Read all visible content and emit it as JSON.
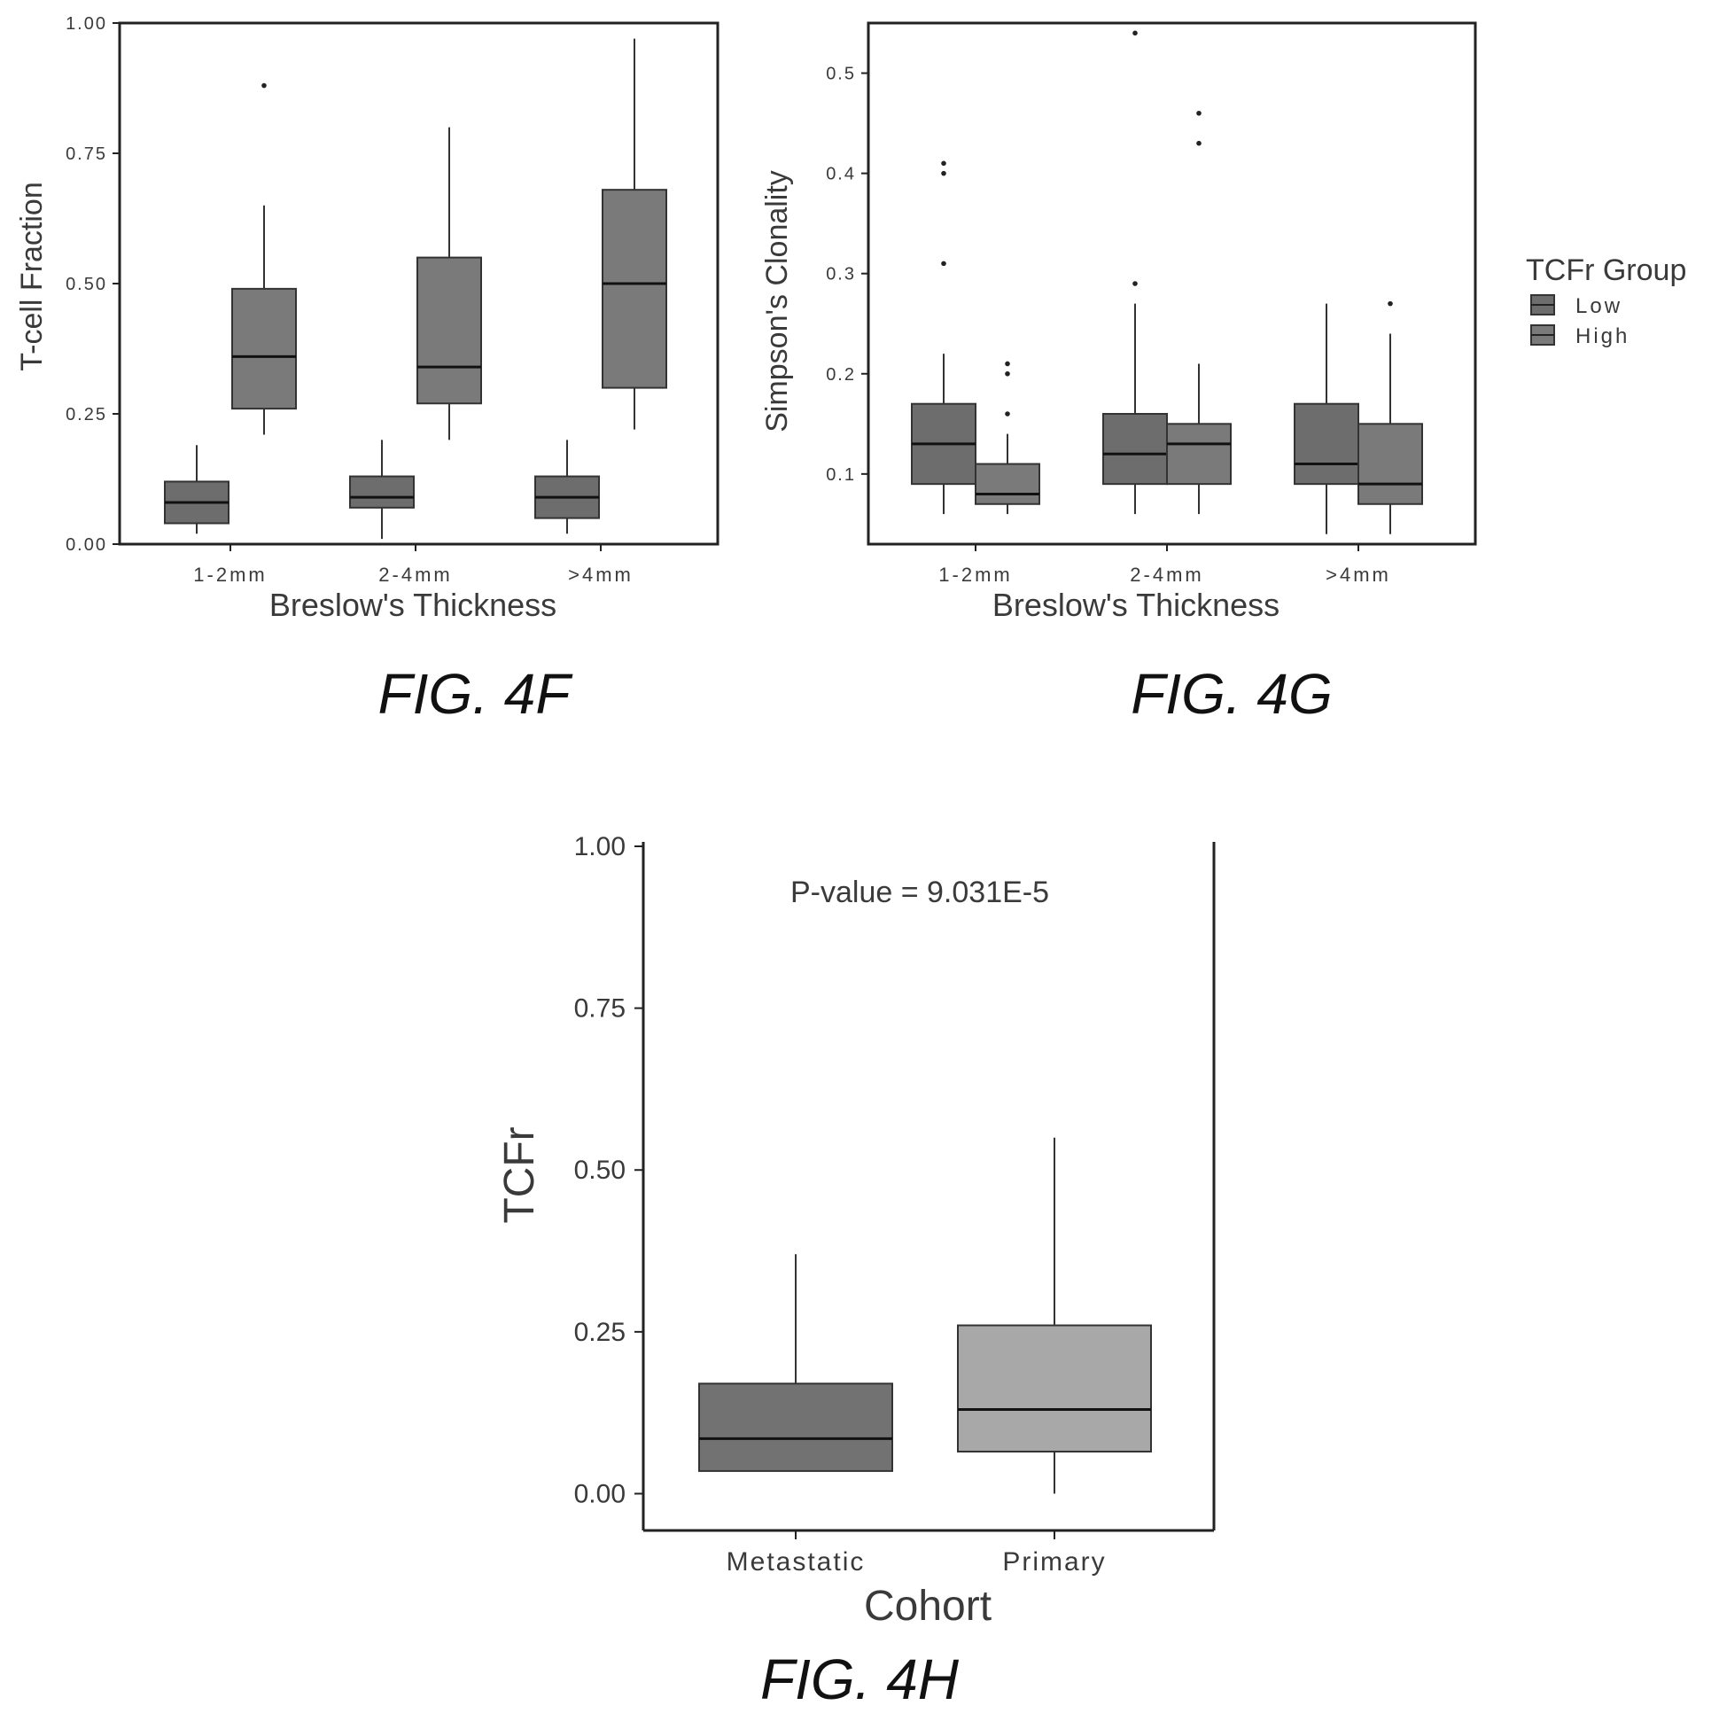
{
  "figures": {
    "f4F": "FIG. 4F",
    "f4G": "FIG. 4G",
    "f4H": "FIG. 4H"
  },
  "colors": {
    "low": "#6d6d6d",
    "high": "#7a7a7a",
    "metastatic": "#727272",
    "primary": "#a8a8a8",
    "box_stroke": "#333333"
  },
  "chart_data": [
    {
      "id": "4F",
      "type": "box",
      "xlabel": "Breslow's Thickness",
      "ylabel": "T-cell Fraction",
      "categories": [
        "1-2mm",
        "2-4mm",
        ">4mm"
      ],
      "ylim": [
        0,
        1
      ],
      "yticks": [
        "0.00",
        "0.25",
        "0.50",
        "0.75",
        "1.00"
      ],
      "grid": false,
      "series": [
        {
          "group": "Low",
          "boxes": [
            {
              "min": 0.02,
              "q1": 0.04,
              "median": 0.08,
              "q3": 0.12,
              "max": 0.19,
              "outliers": []
            },
            {
              "min": 0.01,
              "q1": 0.07,
              "median": 0.09,
              "q3": 0.13,
              "max": 0.2,
              "outliers": []
            },
            {
              "min": 0.02,
              "q1": 0.05,
              "median": 0.09,
              "q3": 0.13,
              "max": 0.2,
              "outliers": []
            }
          ]
        },
        {
          "group": "High",
          "boxes": [
            {
              "min": 0.21,
              "q1": 0.26,
              "median": 0.36,
              "q3": 0.49,
              "max": 0.65,
              "outliers": [
                0.88
              ]
            },
            {
              "min": 0.2,
              "q1": 0.27,
              "median": 0.34,
              "q3": 0.55,
              "max": 0.8,
              "outliers": []
            },
            {
              "min": 0.22,
              "q1": 0.3,
              "median": 0.5,
              "q3": 0.68,
              "max": 0.97,
              "outliers": []
            }
          ]
        }
      ]
    },
    {
      "id": "4G",
      "type": "box",
      "xlabel": "Breslow's Thickness",
      "ylabel": "Simpson's Clonality",
      "categories": [
        "1-2mm",
        "2-4mm",
        ">4mm"
      ],
      "ylim": [
        0.03,
        0.55
      ],
      "yticks": [
        "0.1",
        "0.2",
        "0.3",
        "0.4",
        "0.5"
      ],
      "grid": false,
      "legend": {
        "title": "TCFr Group",
        "items": [
          "Low",
          "High"
        ],
        "placement": "right"
      },
      "series": [
        {
          "group": "Low",
          "boxes": [
            {
              "min": 0.06,
              "q1": 0.09,
              "median": 0.13,
              "q3": 0.17,
              "max": 0.22,
              "outliers": [
                0.31,
                0.4,
                0.41
              ]
            },
            {
              "min": 0.06,
              "q1": 0.09,
              "median": 0.12,
              "q3": 0.16,
              "max": 0.27,
              "outliers": [
                0.29,
                0.54
              ]
            },
            {
              "min": 0.04,
              "q1": 0.09,
              "median": 0.11,
              "q3": 0.17,
              "max": 0.27,
              "outliers": []
            }
          ]
        },
        {
          "group": "High",
          "boxes": [
            {
              "min": 0.06,
              "q1": 0.07,
              "median": 0.08,
              "q3": 0.11,
              "max": 0.14,
              "outliers": [
                0.16,
                0.2,
                0.21
              ]
            },
            {
              "min": 0.06,
              "q1": 0.09,
              "median": 0.13,
              "q3": 0.15,
              "max": 0.21,
              "outliers": [
                0.43,
                0.46
              ]
            },
            {
              "min": 0.04,
              "q1": 0.07,
              "median": 0.09,
              "q3": 0.15,
              "max": 0.24,
              "outliers": [
                0.27
              ]
            }
          ]
        }
      ]
    },
    {
      "id": "4H",
      "type": "box",
      "xlabel": "Cohort",
      "ylabel": "TCFr",
      "categories": [
        "Metastatic",
        "Primary"
      ],
      "ylim": [
        -0.05,
        1.0
      ],
      "yticks": [
        "0.00",
        "0.25",
        "0.50",
        "0.75",
        "1.00"
      ],
      "grid": false,
      "annotation": "P-value = 9.031E-5",
      "boxes": [
        {
          "min": 0.035,
          "q1": 0.035,
          "median": 0.085,
          "q3": 0.17,
          "max": 0.37
        },
        {
          "min": 0.0,
          "q1": 0.065,
          "median": 0.13,
          "q3": 0.26,
          "max": 0.55
        }
      ]
    }
  ]
}
